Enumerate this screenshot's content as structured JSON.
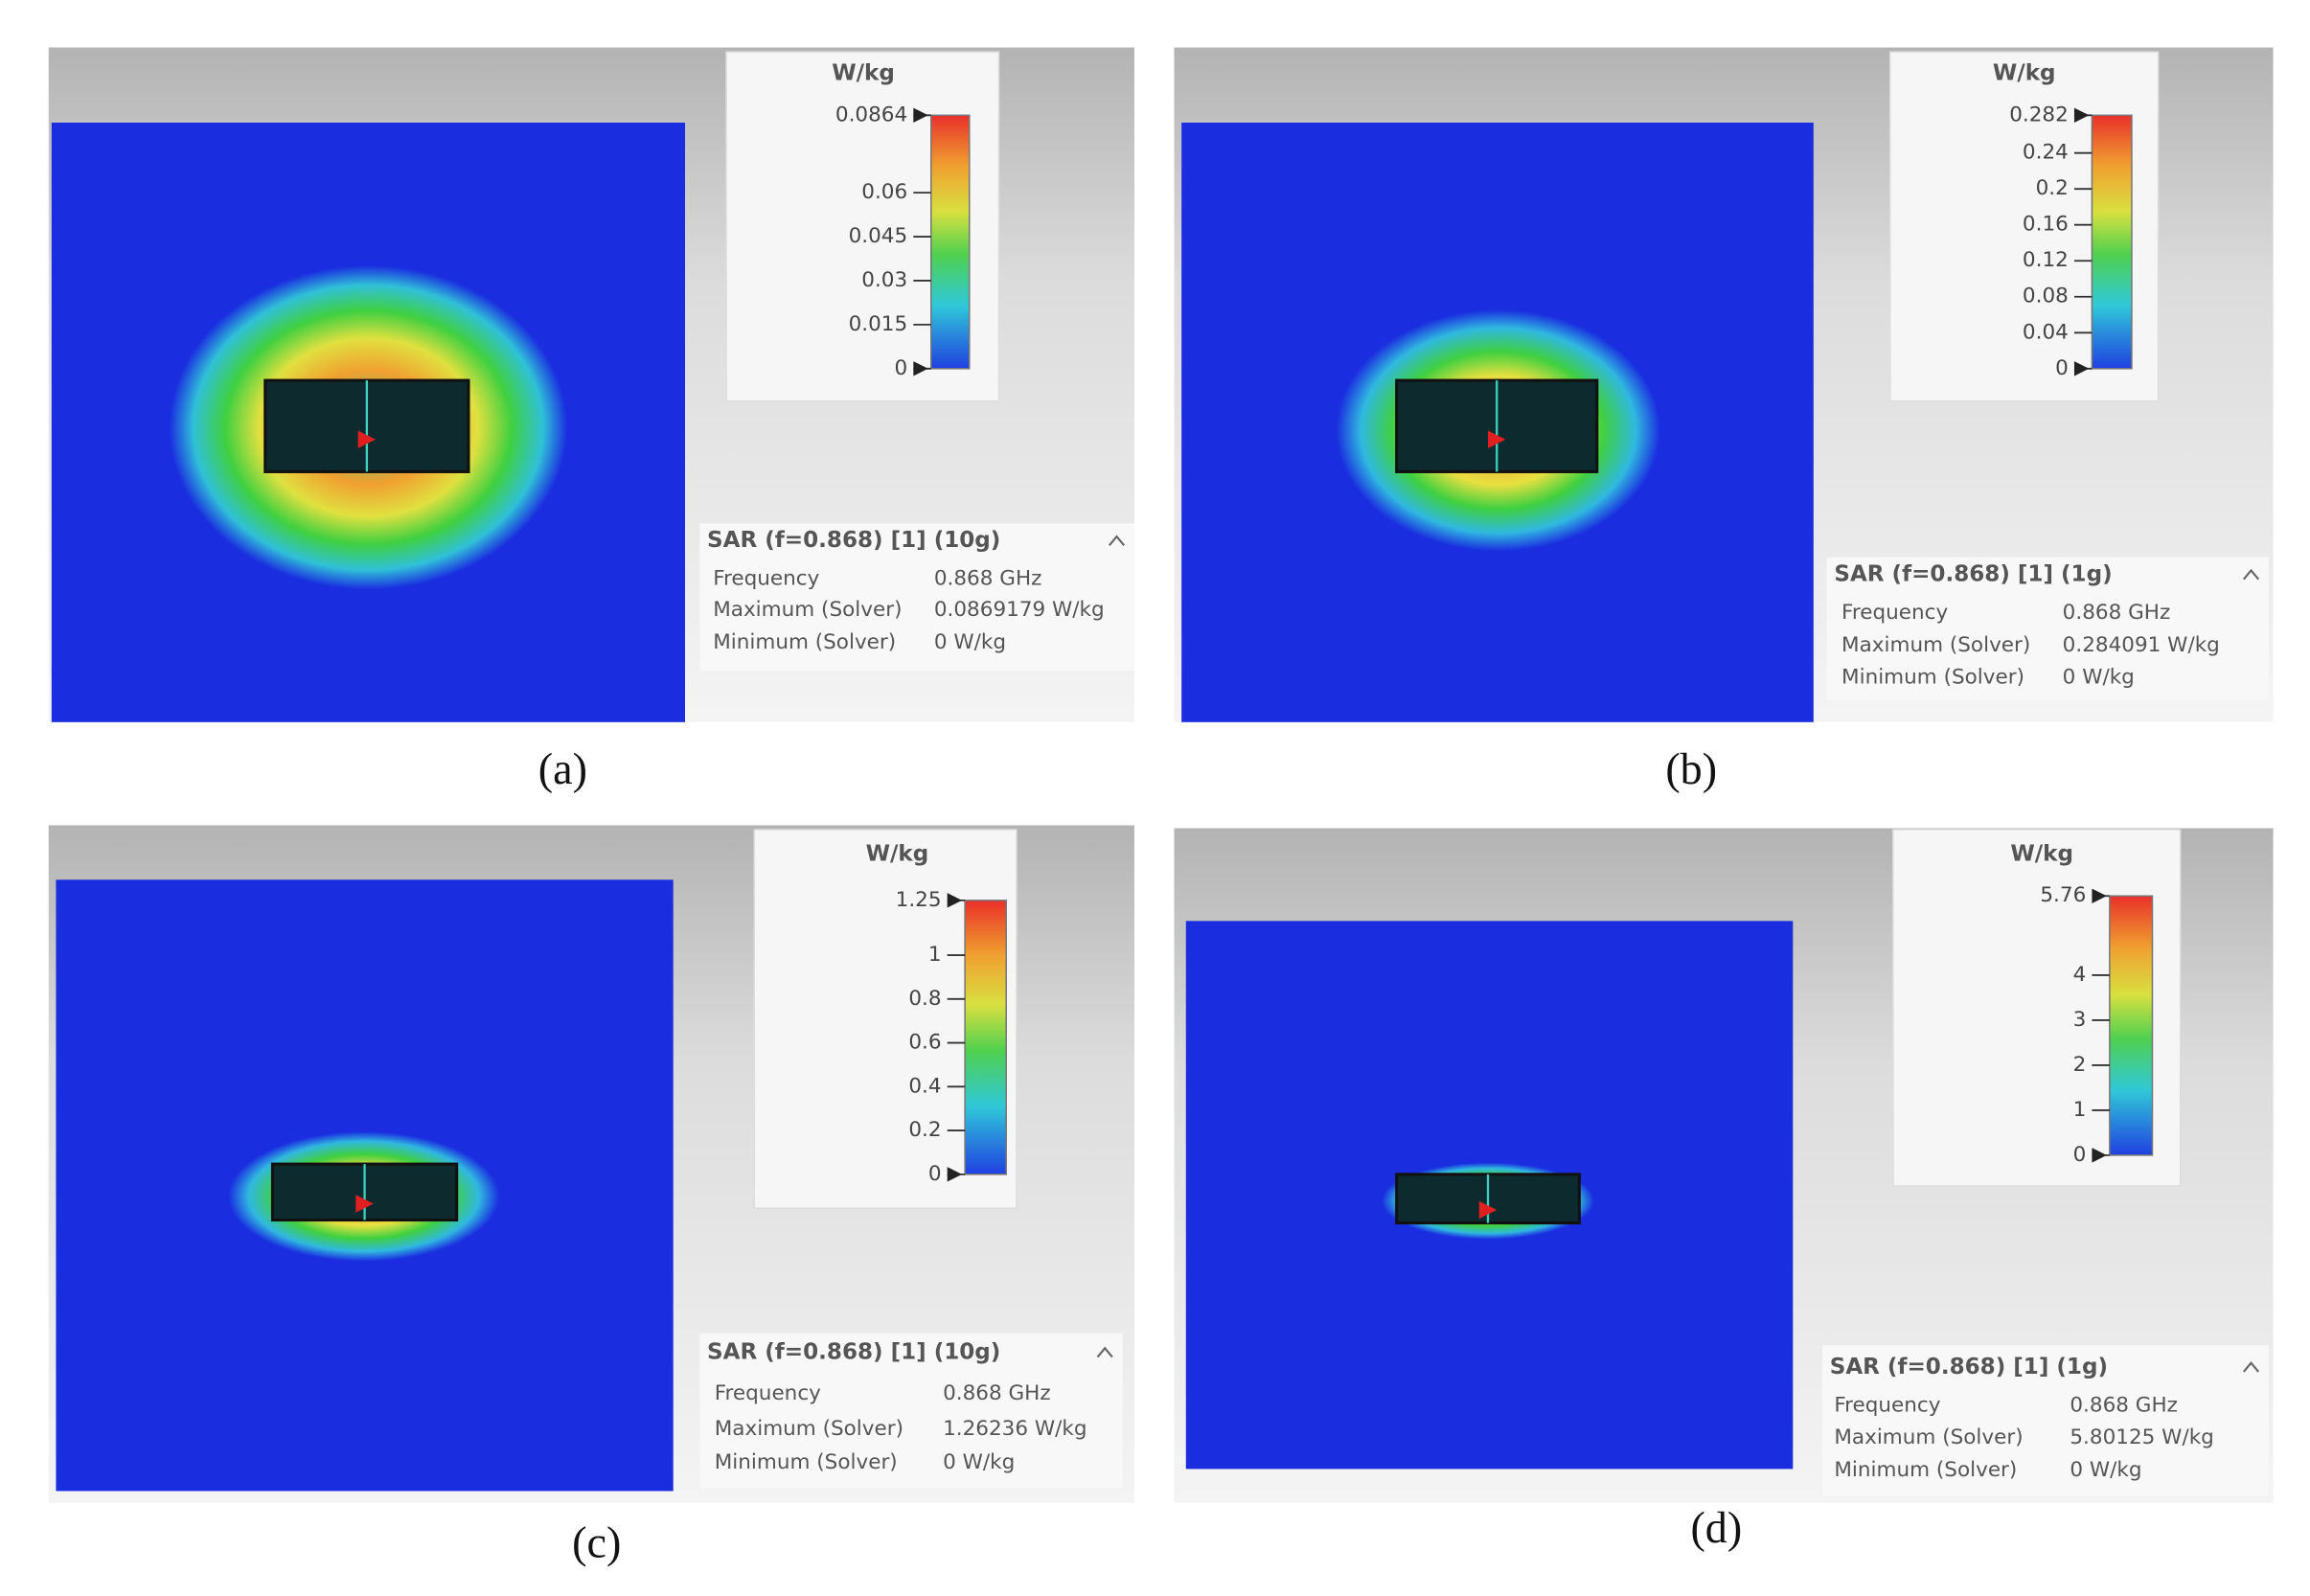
{
  "panels": [
    {
      "label": "(a)",
      "unit": "W/kg",
      "colorbar_ticks": [
        0.0864,
        0.06,
        0.045,
        0.03,
        0.015,
        0
      ],
      "info": {
        "title": "SAR (f=0.868) [1] (10g)",
        "rows": [
          [
            "Frequency",
            "0.868 GHz"
          ],
          [
            "Maximum (Solver)",
            "0.0869179 W/kg"
          ],
          [
            "Minimum (Solver)",
            "0 W/kg"
          ]
        ]
      }
    },
    {
      "label": "(b)",
      "unit": "W/kg",
      "colorbar_ticks": [
        0.282,
        0.24,
        0.2,
        0.16,
        0.12,
        0.08,
        0.04,
        0
      ],
      "info": {
        "title": "SAR (f=0.868) [1] (1g)",
        "rows": [
          [
            "Frequency",
            "0.868 GHz"
          ],
          [
            "Maximum (Solver)",
            "0.284091 W/kg"
          ],
          [
            "Minimum (Solver)",
            "0 W/kg"
          ]
        ]
      }
    },
    {
      "label": "(c)",
      "unit": "W/kg",
      "colorbar_ticks": [
        1.25,
        1,
        0.8,
        0.6,
        0.4,
        0.2,
        0
      ],
      "info": {
        "title": "SAR (f=0.868) [1] (10g)",
        "rows": [
          [
            "Frequency",
            "0.868 GHz"
          ],
          [
            "Maximum (Solver)",
            "1.26236 W/kg"
          ],
          [
            "Minimum (Solver)",
            "0 W/kg"
          ]
        ]
      }
    },
    {
      "label": "(d)",
      "unit": "W/kg",
      "colorbar_ticks": [
        5.76,
        4,
        3,
        2,
        1,
        0
      ],
      "info": {
        "title": "SAR (f=0.868) [1] (1g)",
        "rows": [
          [
            "Frequency",
            "0.868 GHz"
          ],
          [
            "Maximum (Solver)",
            "5.80125 W/kg"
          ],
          [
            "Minimum (Solver)",
            "0 W/kg"
          ]
        ]
      }
    }
  ]
}
